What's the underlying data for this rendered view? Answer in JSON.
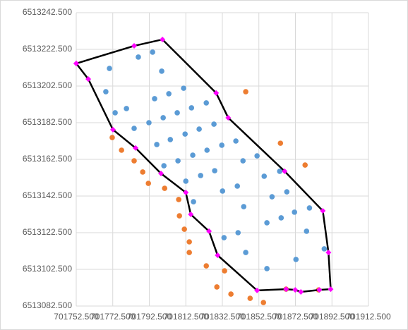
{
  "chart_data": {
    "type": "scatter",
    "xlim": [
      701752.5,
      701912.5
    ],
    "ylim": [
      6513082.5,
      6513242.5
    ],
    "xticks": [
      {
        "value": 701752.5,
        "label": "701752.500"
      },
      {
        "value": 701772.5,
        "label": "701772.500"
      },
      {
        "value": 701792.5,
        "label": "701792.500"
      },
      {
        "value": 701812.5,
        "label": "701812.500"
      },
      {
        "value": 701832.5,
        "label": "701832.500"
      },
      {
        "value": 701852.5,
        "label": "701852.500"
      },
      {
        "value": 701872.5,
        "label": "701872.500"
      },
      {
        "value": 701892.5,
        "label": "701892.500"
      },
      {
        "value": 701912.5,
        "label": "701912.500"
      }
    ],
    "yticks": [
      {
        "value": 6513082.5,
        "label": "6513082.500"
      },
      {
        "value": 6513102.5,
        "label": "6513102.500"
      },
      {
        "value": 6513122.5,
        "label": "6513122.500"
      },
      {
        "value": 6513142.5,
        "label": "6513142.500"
      },
      {
        "value": 6513162.5,
        "label": "6513162.500"
      },
      {
        "value": 6513182.5,
        "label": "6513182.500"
      },
      {
        "value": 6513202.5,
        "label": "6513202.500"
      },
      {
        "value": 6513222.5,
        "label": "6513222.500"
      },
      {
        "value": 6513242.5,
        "label": "6513242.500"
      }
    ],
    "grid": true,
    "series": [
      {
        "color": "#5b9bd5",
        "marker": "circle",
        "line": false,
        "x": [
          701770.7,
          701786.5,
          701794.3,
          701799.3,
          701768.7,
          701773.8,
          701780.0,
          701795.4,
          701803.2,
          701811.3,
          701784.2,
          701792.3,
          701800.1,
          701807.8,
          701815.6,
          701823.7,
          701796.6,
          701804.0,
          701812.1,
          701819.8,
          701827.9,
          701800.5,
          701808.2,
          701816.3,
          701824.1,
          701832.2,
          701812.5,
          701820.6,
          701828.3,
          701839.9,
          701843.8,
          701851.5,
          701855.4,
          701863.9,
          701832.6,
          701840.7,
          701816.7,
          701844.2,
          701859.7,
          701867.8,
          701872.0,
          701880.2,
          701856.9,
          701864.7,
          701833.4,
          701841.1,
          701878.6,
          701845.3,
          701872.8,
          701888.3,
          701856.9
        ],
        "y": [
          6513212.1,
          6513218.3,
          6513221.0,
          6513210.6,
          6513199.4,
          6513187.9,
          6513190.2,
          6513195.6,
          6513198.3,
          6513201.3,
          6513179.4,
          6513182.5,
          6513185.2,
          6513187.9,
          6513190.6,
          6513193.3,
          6513170.6,
          6513173.3,
          6513176.3,
          6513179.0,
          6513181.7,
          6513159.0,
          6513161.7,
          6513164.8,
          6513167.5,
          6513170.2,
          6513150.6,
          6513153.7,
          6513156.3,
          6513172.5,
          6513161.7,
          6513164.4,
          6513153.3,
          6513156.0,
          6513145.2,
          6513147.9,
          6513139.4,
          6513136.7,
          6513142.1,
          6513144.8,
          6513133.7,
          6513136.0,
          6513127.9,
          6513130.6,
          6513119.8,
          6513122.5,
          6513123.3,
          6513111.7,
          6513107.9,
          6513113.7,
          6513102.9
        ]
      },
      {
        "color": "#ed7d31",
        "marker": "circle",
        "line": false,
        "x": [
          701845.3,
          701772.2,
          701777.3,
          701784.2,
          701788.9,
          701792.0,
          701800.9,
          701808.6,
          701809.0,
          701811.7,
          701814.4,
          701814.4,
          701823.7,
          701833.7,
          701829.5,
          701837.2,
          701847.7,
          701855.0,
          701864.3,
          701877.8,
          701867.4,
          701885.2
        ],
        "y": [
          6513199.4,
          6513174.4,
          6513167.5,
          6513161.7,
          6513155.6,
          6513149.4,
          6513146.7,
          6513140.6,
          6513131.7,
          6513124.4,
          6513117.5,
          6513111.7,
          6513104.4,
          6513101.7,
          6513092.9,
          6513089.0,
          6513086.7,
          6513084.4,
          6513171.3,
          6513159.4,
          6513091.7,
          6513091.3
        ]
      },
      {
        "color": "#ff00ff",
        "line_color": "#000000",
        "marker": "diamond",
        "line": true,
        "x": [
          701752.5,
          701759.1,
          701772.6,
          701785.0,
          701798.9,
          701812.5,
          701815.2,
          701825.2,
          701829.9,
          701851.5,
          701867.4,
          701872.4,
          701875.5,
          701885.6,
          701891.8,
          701890.6,
          701887.5,
          701866.6,
          701835.7,
          701829.1,
          701799.7,
          701784.2,
          701752.5
        ],
        "y": [
          6513214.8,
          6513206.3,
          6513178.7,
          6513168.7,
          6513154.8,
          6513144.4,
          6513132.5,
          6513123.3,
          6513110.2,
          6513091.0,
          6513091.7,
          6513091.3,
          6513090.2,
          6513091.3,
          6513091.7,
          6513111.7,
          6513134.4,
          6513156.0,
          6513185.2,
          6513198.7,
          6513227.9,
          6513224.4,
          6513214.8
        ]
      }
    ]
  }
}
